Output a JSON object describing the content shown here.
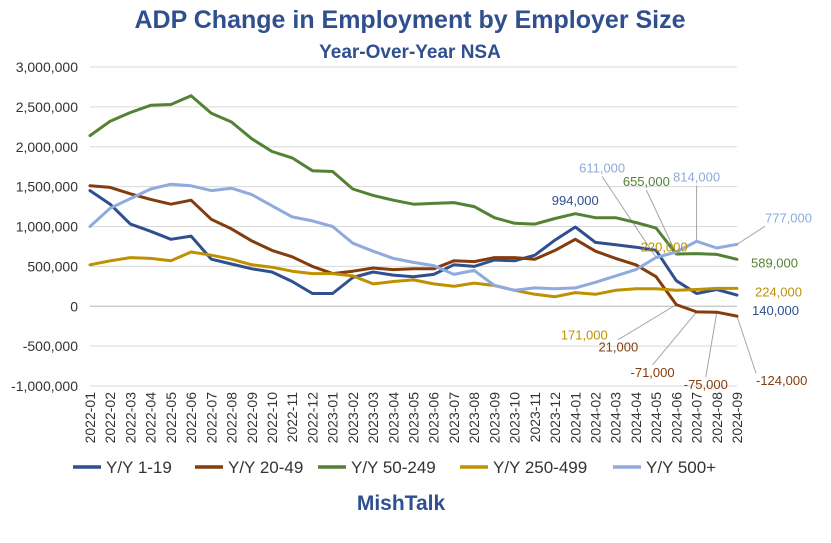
{
  "chart_data": {
    "type": "line",
    "title": "ADP Change in Employment by Employer Size",
    "subtitle": "Year-Over-Year NSA",
    "ylim": [
      -1000000,
      3000000
    ],
    "yticks": [
      3000000,
      2500000,
      2000000,
      1500000,
      1000000,
      500000,
      0,
      -500000,
      -1000000
    ],
    "ytick_labels": [
      "3,000,000",
      "2,500,000",
      "2,000,000",
      "1,500,000",
      "1,000,000",
      "500,000",
      "0",
      "-500,000",
      "-1,000,000"
    ],
    "grid": "horizontal",
    "legend_position": "bottom",
    "categories": [
      "2022-01",
      "2022-02",
      "2022-03",
      "2022-04",
      "2022-05",
      "2022-06",
      "2022-07",
      "2022-08",
      "2022-09",
      "2022-10",
      "2022-11",
      "2022-12",
      "2023-01",
      "2023-02",
      "2023-03",
      "2023-04",
      "2023-05",
      "2023-06",
      "2023-07",
      "2023-08",
      "2023-09",
      "2023-10",
      "2023-11",
      "2023-12",
      "2024-01",
      "2024-02",
      "2024-03",
      "2024-04",
      "2024-05",
      "2024-06",
      "2024-07",
      "2024-08",
      "2024-09"
    ],
    "series": [
      {
        "name": "Y/Y 1-19",
        "color": "#2f4f8f",
        "values": [
          1450000,
          1280000,
          1030000,
          940000,
          840000,
          880000,
          590000,
          530000,
          470000,
          430000,
          310000,
          160000,
          160000,
          360000,
          430000,
          390000,
          370000,
          400000,
          520000,
          500000,
          580000,
          570000,
          640000,
          830000,
          994000,
          800000,
          770000,
          740000,
          700000,
          320000,
          160000,
          210000,
          140000
        ]
      },
      {
        "name": "Y/Y 20-49",
        "color": "#843c0c",
        "values": [
          1510000,
          1490000,
          1410000,
          1340000,
          1280000,
          1330000,
          1090000,
          970000,
          820000,
          700000,
          620000,
          500000,
          410000,
          440000,
          480000,
          460000,
          470000,
          470000,
          570000,
          560000,
          610000,
          610000,
          590000,
          700000,
          840000,
          690000,
          600000,
          520000,
          370000,
          21000,
          -71000,
          -75000,
          -124000
        ]
      },
      {
        "name": "Y/Y 50-249",
        "color": "#548235",
        "values": [
          2140000,
          2320000,
          2430000,
          2520000,
          2530000,
          2640000,
          2420000,
          2310000,
          2100000,
          1940000,
          1860000,
          1700000,
          1690000,
          1470000,
          1390000,
          1330000,
          1280000,
          1290000,
          1300000,
          1250000,
          1110000,
          1040000,
          1030000,
          1100000,
          1160000,
          1110000,
          1110000,
          1050000,
          980000,
          655000,
          660000,
          650000,
          589000
        ]
      },
      {
        "name": "Y/Y 250-499",
        "color": "#bf9000",
        "values": [
          520000,
          570000,
          610000,
          600000,
          570000,
          680000,
          640000,
          590000,
          520000,
          490000,
          440000,
          410000,
          410000,
          380000,
          280000,
          310000,
          330000,
          280000,
          250000,
          290000,
          260000,
          200000,
          150000,
          120000,
          171000,
          150000,
          200000,
          220000,
          220000,
          200000,
          210000,
          224000,
          224000
        ]
      },
      {
        "name": "Y/Y 500+",
        "color": "#8faadc",
        "values": [
          1000000,
          1230000,
          1350000,
          1470000,
          1530000,
          1510000,
          1450000,
          1480000,
          1400000,
          1260000,
          1120000,
          1070000,
          1000000,
          790000,
          690000,
          600000,
          550000,
          510000,
          400000,
          450000,
          260000,
          200000,
          230000,
          220000,
          230000,
          300000,
          380000,
          460000,
          611000,
          680000,
          814000,
          730000,
          777000
        ]
      }
    ],
    "annotations": [
      {
        "text": "994,000",
        "series": "Y/Y 1-19",
        "category": "2024-01",
        "value": 994000,
        "color": "#2f4f8f"
      },
      {
        "text": "611,000",
        "series": "Y/Y 500+",
        "category": "2024-05",
        "value": 611000,
        "color": "#8faadc"
      },
      {
        "text": "814,000",
        "series": "Y/Y 500+",
        "category": "2024-07",
        "value": 814000,
        "color": "#8faadc"
      },
      {
        "text": "777,000",
        "series": "Y/Y 500+",
        "category": "2024-09",
        "value": 777000,
        "color": "#8faadc"
      },
      {
        "text": "655,000",
        "series": "Y/Y 50-249",
        "category": "2024-06",
        "value": 655000,
        "color": "#548235"
      },
      {
        "text": "589,000",
        "series": "Y/Y 50-249",
        "category": "2024-09",
        "value": 589000,
        "color": "#548235"
      },
      {
        "text": "220,000",
        "series": "Y/Y 250-499",
        "category": "2024-05",
        "value": 220000,
        "color": "#bf9000"
      },
      {
        "text": "224,000",
        "series": "Y/Y 250-499",
        "category": "2024-09",
        "value": 224000,
        "color": "#bf9000"
      },
      {
        "text": "171,000",
        "series": "Y/Y 250-499",
        "category": "2024-01",
        "value": 171000,
        "color": "#bf9000"
      },
      {
        "text": "140,000",
        "series": "Y/Y 1-19",
        "category": "2024-09",
        "value": 140000,
        "color": "#2f4f8f"
      },
      {
        "text": "21,000",
        "series": "Y/Y 20-49",
        "category": "2024-06",
        "value": 21000,
        "color": "#843c0c"
      },
      {
        "text": "-71,000",
        "series": "Y/Y 20-49",
        "category": "2024-07",
        "value": -71000,
        "color": "#843c0c"
      },
      {
        "text": "-75,000",
        "series": "Y/Y 20-49",
        "category": "2024-08",
        "value": -75000,
        "color": "#843c0c"
      },
      {
        "text": "-124,000",
        "series": "Y/Y 20-49",
        "category": "2024-09",
        "value": -124000,
        "color": "#843c0c"
      }
    ]
  },
  "brand": "MishTalk"
}
